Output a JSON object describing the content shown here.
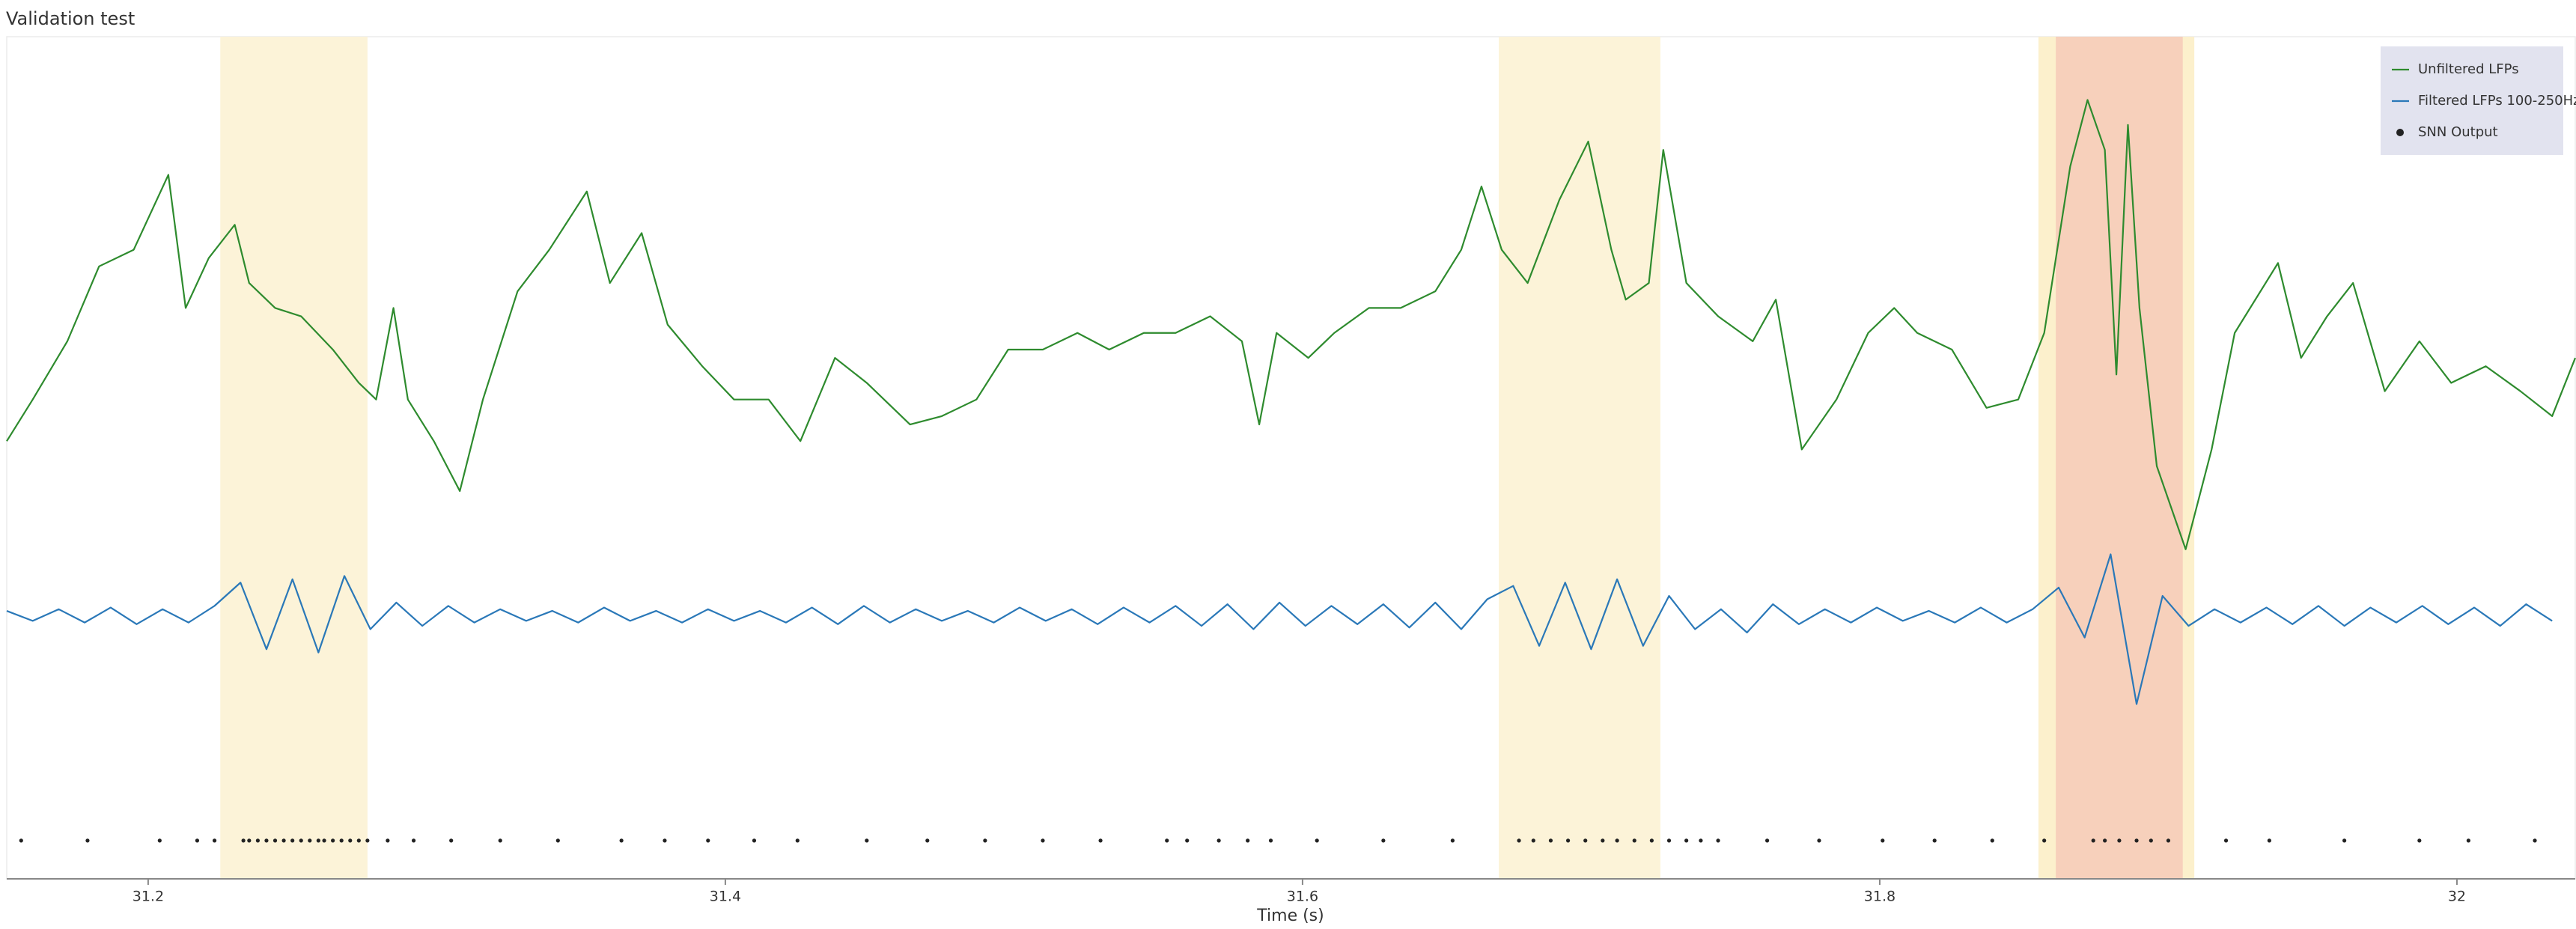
{
  "chart_data": {
    "type": "line",
    "title": "Validation test",
    "x_label": "Time (s)",
    "xlim": [
      31.151,
      32.041
    ],
    "xticks": [
      31.2,
      31.4,
      31.6,
      31.8,
      32
    ],
    "ylim": [
      0,
      506
    ],
    "legend": "upper right",
    "spans": [
      {
        "x": [
          31.225,
          31.276
        ],
        "color": "#fcf3d8"
      },
      {
        "x": [
          31.668,
          31.724
        ],
        "color": "#fcf3d8"
      },
      {
        "x": [
          31.855,
          31.909
        ],
        "color": "#fcf0cc"
      },
      {
        "x": [
          31.861,
          31.905
        ],
        "color": "#f7d0bb"
      }
    ],
    "series": [
      {
        "name": "Unfiltered LFPs",
        "color": "#2e8b2e",
        "mode": "lines",
        "x": [
          31.151,
          31.16,
          31.172,
          31.183,
          31.195,
          31.207,
          31.213,
          31.221,
          31.23,
          31.235,
          31.244,
          31.253,
          31.264,
          31.273,
          31.279,
          31.285,
          31.29,
          31.299,
          31.308,
          31.316,
          31.328,
          31.339,
          31.352,
          31.36,
          31.371,
          31.38,
          31.392,
          31.403,
          31.415,
          31.426,
          31.438,
          31.449,
          31.464,
          31.475,
          31.487,
          31.498,
          31.51,
          31.522,
          31.533,
          31.545,
          31.556,
          31.568,
          31.579,
          31.585,
          31.591,
          31.602,
          31.611,
          31.623,
          31.634,
          31.646,
          31.655,
          31.662,
          31.669,
          31.678,
          31.689,
          31.699,
          31.707,
          31.712,
          31.72,
          31.725,
          31.733,
          31.744,
          31.756,
          31.764,
          31.773,
          31.785,
          31.796,
          31.805,
          31.813,
          31.825,
          31.837,
          31.848,
          31.857,
          31.866,
          31.872,
          31.878,
          31.882,
          31.886,
          31.89,
          31.896,
          31.9,
          31.906,
          31.915,
          31.923,
          31.938,
          31.946,
          31.955,
          31.964,
          31.975,
          31.987,
          31.998,
          32.01,
          32.022,
          32.033,
          32.041
        ],
        "values": [
          263,
          288,
          323,
          368,
          378,
          423,
          343,
          373,
          393,
          358,
          343,
          338,
          318,
          298,
          288,
          343,
          288,
          263,
          233,
          288,
          353,
          378,
          413,
          358,
          388,
          333,
          308,
          288,
          288,
          263,
          313,
          298,
          273,
          278,
          288,
          318,
          318,
          328,
          318,
          328,
          328,
          338,
          323,
          273,
          328,
          313,
          328,
          343,
          343,
          353,
          378,
          416,
          378,
          358,
          408,
          443,
          378,
          348,
          358,
          438,
          358,
          338,
          323,
          348,
          258,
          288,
          328,
          343,
          328,
          318,
          283,
          288,
          328,
          428,
          468,
          438,
          303,
          453,
          343,
          248,
          228,
          198,
          258,
          328,
          370,
          313,
          338,
          358,
          293,
          323,
          298,
          308,
          293,
          278,
          313
        ]
      },
      {
        "name": "Filtered LFPs 100-250Hz",
        "color": "#2a78b8",
        "mode": "lines",
        "x": [
          31.151,
          31.16,
          31.169,
          31.178,
          31.187,
          31.196,
          31.205,
          31.214,
          31.223,
          31.232,
          31.241,
          31.25,
          31.259,
          31.268,
          31.277,
          31.286,
          31.295,
          31.304,
          31.313,
          31.322,
          31.331,
          31.34,
          31.349,
          31.358,
          31.367,
          31.376,
          31.385,
          31.394,
          31.403,
          31.412,
          31.421,
          31.43,
          31.439,
          31.448,
          31.457,
          31.466,
          31.475,
          31.484,
          31.493,
          31.502,
          31.511,
          31.52,
          31.529,
          31.538,
          31.547,
          31.556,
          31.565,
          31.574,
          31.583,
          31.592,
          31.601,
          31.61,
          31.619,
          31.628,
          31.637,
          31.646,
          31.655,
          31.664,
          31.673,
          31.682,
          31.691,
          31.7,
          31.709,
          31.718,
          31.727,
          31.736,
          31.745,
          31.754,
          31.763,
          31.772,
          31.781,
          31.79,
          31.799,
          31.808,
          31.817,
          31.826,
          31.835,
          31.844,
          31.853,
          31.862,
          31.871,
          31.88,
          31.889,
          31.898,
          31.907,
          31.916,
          31.925,
          31.934,
          31.943,
          31.952,
          31.961,
          31.97,
          31.979,
          31.988,
          31.997,
          32.006,
          32.015,
          32.024,
          32.033
        ],
        "values": [
          161,
          155,
          162,
          154,
          163,
          153,
          162,
          154,
          164,
          178,
          138,
          180,
          136,
          182,
          150,
          166,
          152,
          164,
          154,
          162,
          155,
          161,
          154,
          163,
          155,
          161,
          154,
          162,
          155,
          161,
          154,
          163,
          153,
          164,
          154,
          162,
          155,
          161,
          154,
          163,
          155,
          162,
          153,
          163,
          154,
          164,
          152,
          165,
          150,
          166,
          152,
          164,
          153,
          165,
          151,
          166,
          150,
          168,
          176,
          140,
          178,
          138,
          180,
          140,
          170,
          150,
          162,
          148,
          165,
          153,
          162,
          154,
          163,
          155,
          161,
          154,
          163,
          154,
          162,
          175,
          145,
          195,
          105,
          170,
          152,
          162,
          154,
          163,
          153,
          164,
          152,
          163,
          154,
          164,
          153,
          163,
          152,
          165,
          155
        ]
      },
      {
        "name": "SNN Output",
        "color": "#222222",
        "mode": "markers",
        "x": [
          31.156,
          31.179,
          31.204,
          31.217,
          31.223,
          31.233,
          31.235,
          31.238,
          31.241,
          31.244,
          31.247,
          31.25,
          31.253,
          31.256,
          31.259,
          31.261,
          31.264,
          31.267,
          31.27,
          31.273,
          31.276,
          31.283,
          31.292,
          31.305,
          31.322,
          31.342,
          31.364,
          31.379,
          31.394,
          31.41,
          31.425,
          31.449,
          31.47,
          31.49,
          31.51,
          31.53,
          31.553,
          31.56,
          31.571,
          31.581,
          31.589,
          31.605,
          31.628,
          31.652,
          31.675,
          31.68,
          31.686,
          31.692,
          31.698,
          31.704,
          31.709,
          31.715,
          31.721,
          31.727,
          31.733,
          31.738,
          31.744,
          31.761,
          31.779,
          31.801,
          31.819,
          31.839,
          31.857,
          31.874,
          31.878,
          31.883,
          31.889,
          31.894,
          31.9,
          31.92,
          31.935,
          31.961,
          31.987,
          32.004,
          32.027
        ],
        "values": [
          23,
          23,
          23,
          23,
          23,
          23,
          23,
          23,
          23,
          23,
          23,
          23,
          23,
          23,
          23,
          23,
          23,
          23,
          23,
          23,
          23,
          23,
          23,
          23,
          23,
          23,
          23,
          23,
          23,
          23,
          23,
          23,
          23,
          23,
          23,
          23,
          23,
          23,
          23,
          23,
          23,
          23,
          23,
          23,
          23,
          23,
          23,
          23,
          23,
          23,
          23,
          23,
          23,
          23,
          23,
          23,
          23,
          23,
          23,
          23,
          23,
          23,
          23,
          23,
          23,
          23,
          23,
          23,
          23,
          23,
          23,
          23,
          23,
          23,
          23
        ]
      }
    ]
  }
}
